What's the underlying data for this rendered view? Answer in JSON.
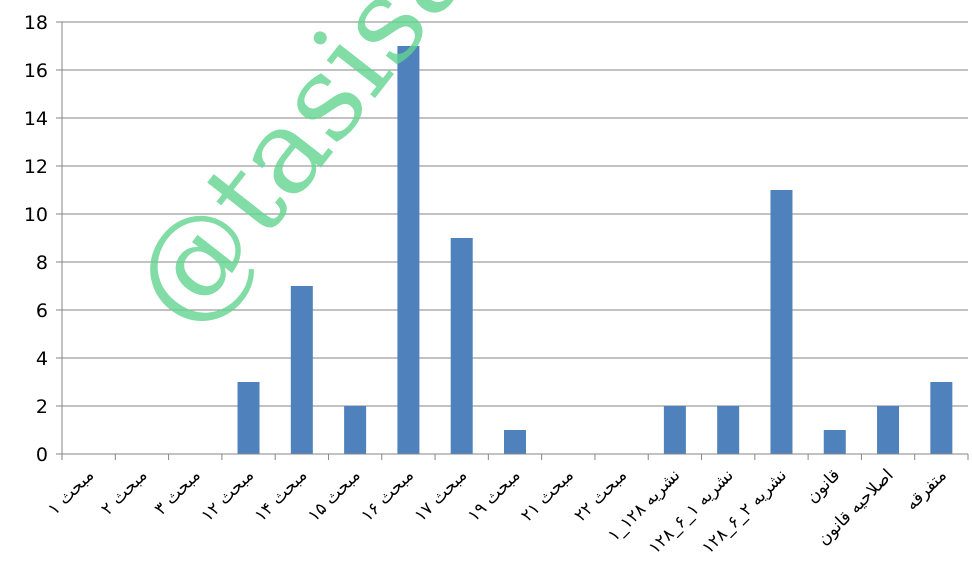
{
  "chart_data": {
    "type": "bar",
    "categories": [
      "مبحث ۱",
      "مبحث ۲",
      "مبحث ۳",
      "مبحث ۱۲",
      "مبحث ۱۴",
      "مبحث ۱۵",
      "مبحث ۱۶",
      "مبحث ۱۷",
      "مبحث ۱۹",
      "مبحث ۲۱",
      "مبحث ۲۲",
      "نشریه ۱۲۸_۱",
      "نشریه ۱_۶_۱۲۸",
      "نشریه ۲_۶_۱۲۸",
      "قانون",
      "اصلاحیه قانون",
      "متفرقه"
    ],
    "values": [
      0,
      0,
      0,
      3,
      7,
      2,
      17,
      9,
      1,
      0,
      0,
      2,
      2,
      11,
      1,
      2,
      3
    ],
    "yticks": [
      "0",
      "2",
      "4",
      "6",
      "8",
      "10",
      "12",
      "14",
      "16",
      "18"
    ],
    "ylim": [
      0,
      18
    ],
    "grid": true,
    "legend": "none",
    "bar_color": "#4f81bd",
    "title": "",
    "xlabel": "",
    "ylabel": ""
  },
  "watermark": {
    "text": "@tasisatn",
    "color": "#62d48f"
  }
}
